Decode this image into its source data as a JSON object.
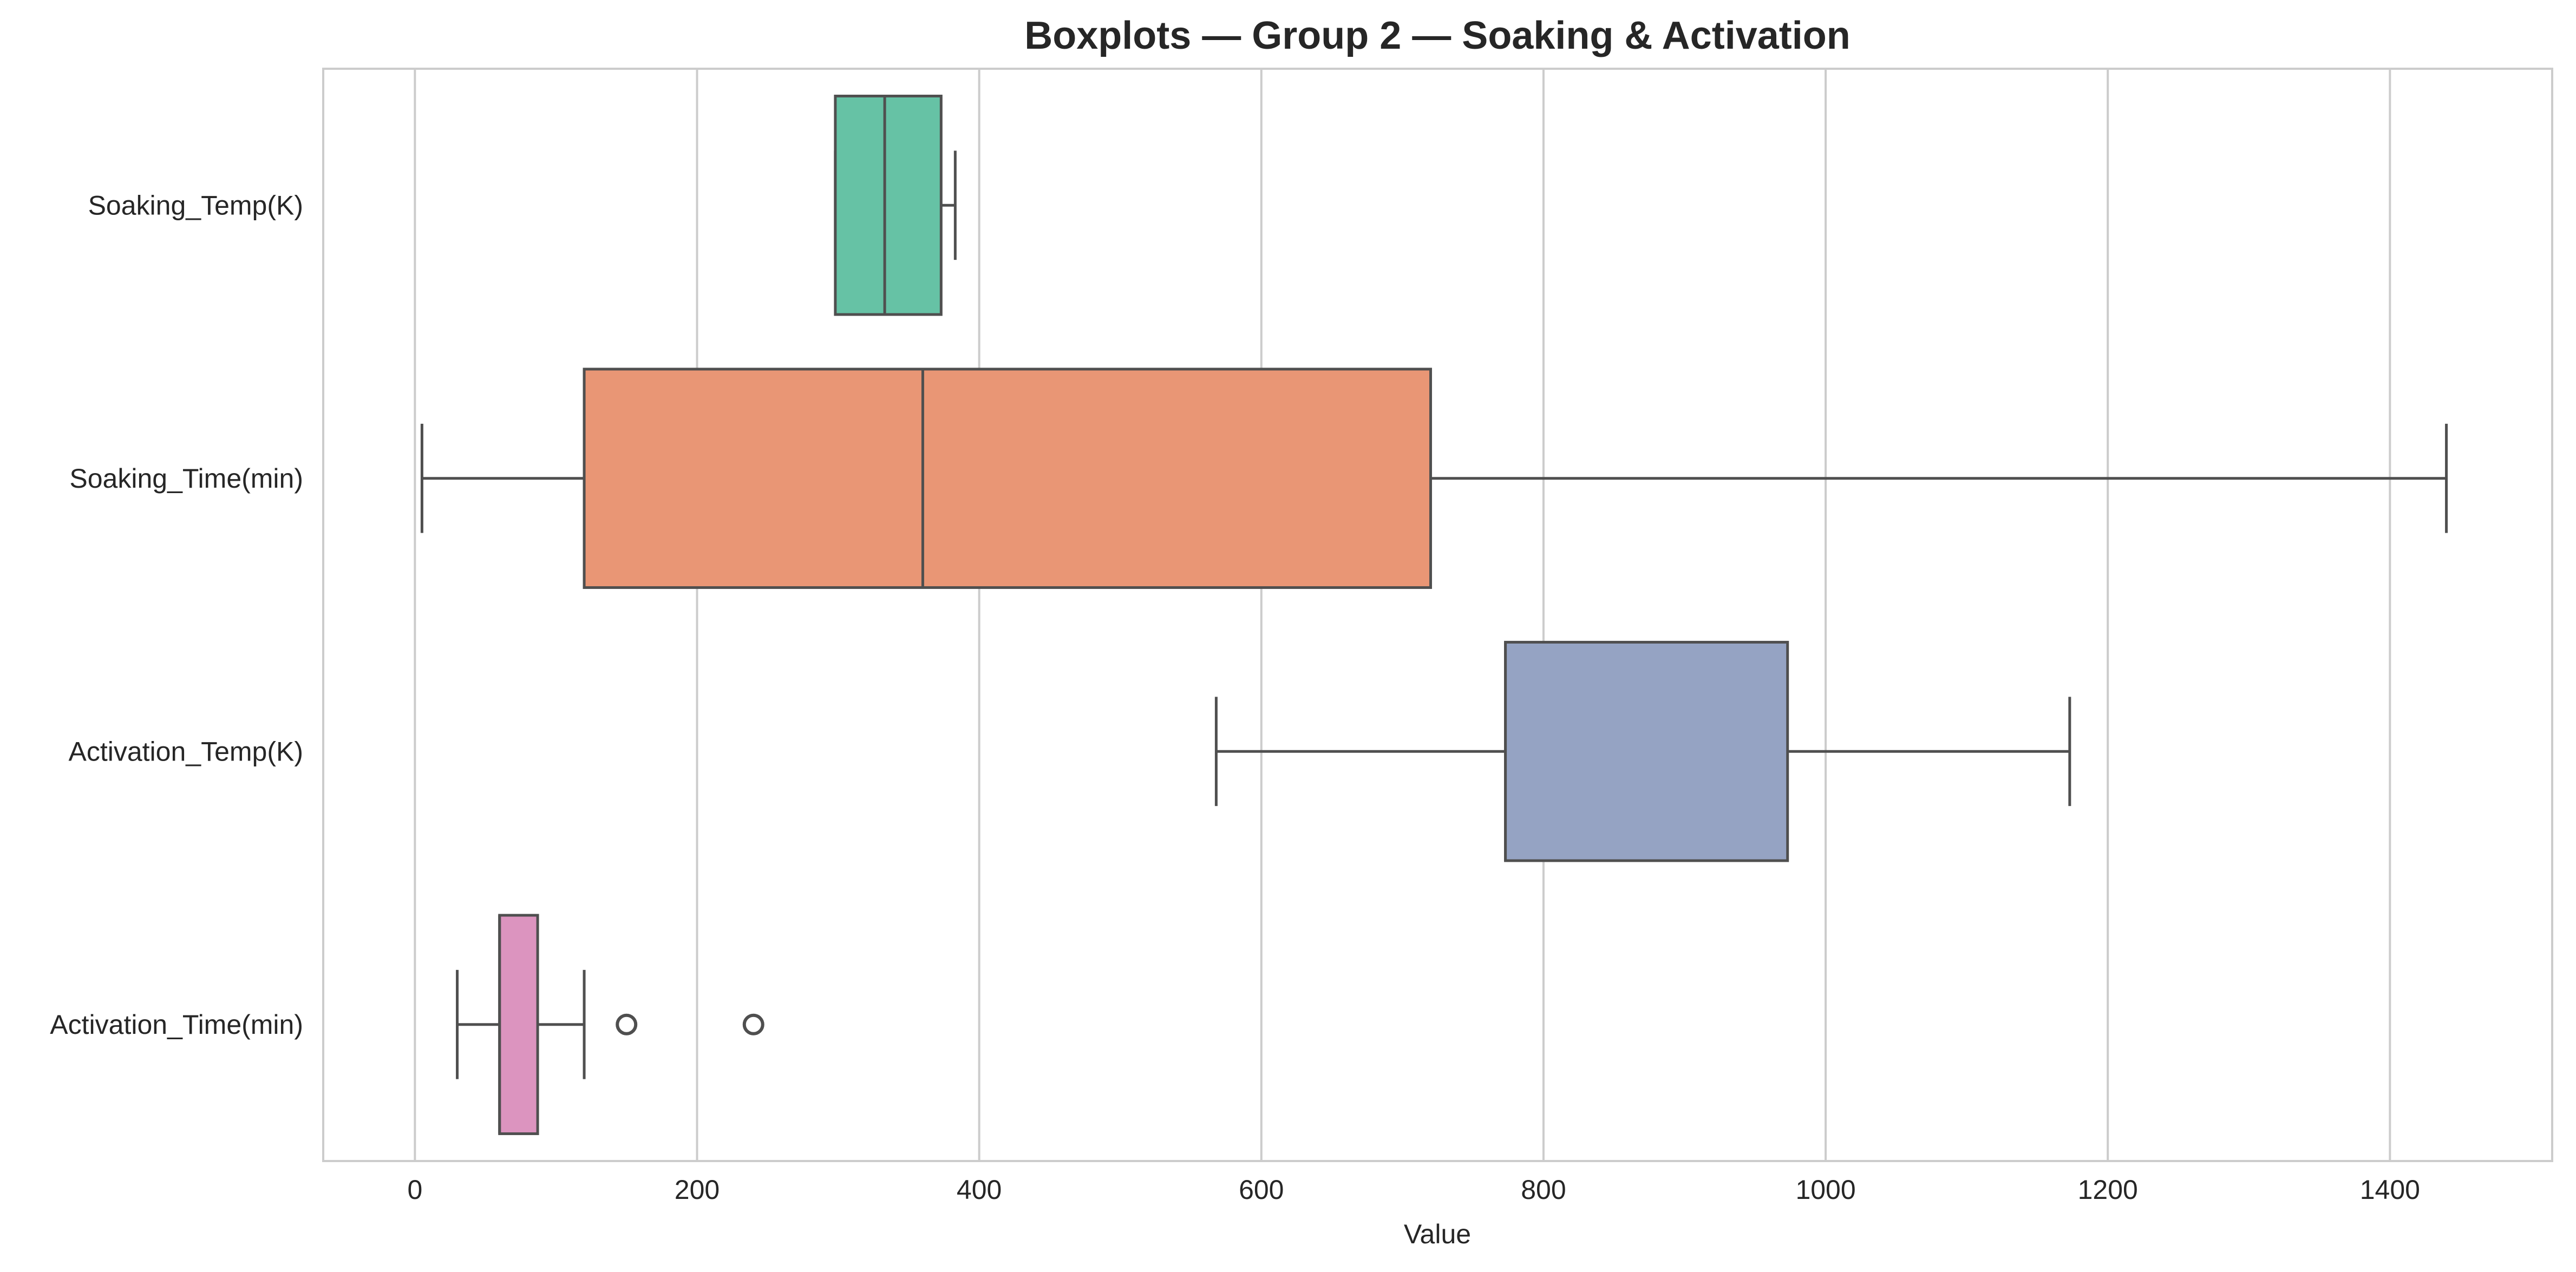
{
  "chart_data": {
    "type": "boxplot",
    "orientation": "horizontal",
    "title": "Boxplots — Group 2 — Soaking & Activation",
    "xlabel": "Value",
    "ylabel": "",
    "xlim": [
      -65,
      1515
    ],
    "xticks": [
      0,
      200,
      400,
      600,
      800,
      1000,
      1200,
      1400
    ],
    "grid": "vertical",
    "legend": "none",
    "series": [
      {
        "name": "Soaking_Temp(K)",
        "color": "#66c2a5",
        "whisker_low": 298,
        "q1": 298,
        "median": 333,
        "q3": 373,
        "whisker_high": 383,
        "outliers": []
      },
      {
        "name": "Soaking_Time(min)",
        "color": "#e99675",
        "whisker_low": 5,
        "q1": 120,
        "median": 360,
        "q3": 720,
        "whisker_high": 1440,
        "outliers": []
      },
      {
        "name": "Activation_Temp(K)",
        "color": "#95a3c3",
        "whisker_low": 568,
        "q1": 773,
        "median": 773,
        "q3": 973,
        "whisker_high": 1173,
        "outliers": []
      },
      {
        "name": "Activation_Time(min)",
        "color": "#dc94bf",
        "whisker_low": 30,
        "q1": 60,
        "median": 60,
        "q3": 87,
        "whisker_high": 120,
        "outliers": [
          150,
          240
        ]
      }
    ]
  }
}
